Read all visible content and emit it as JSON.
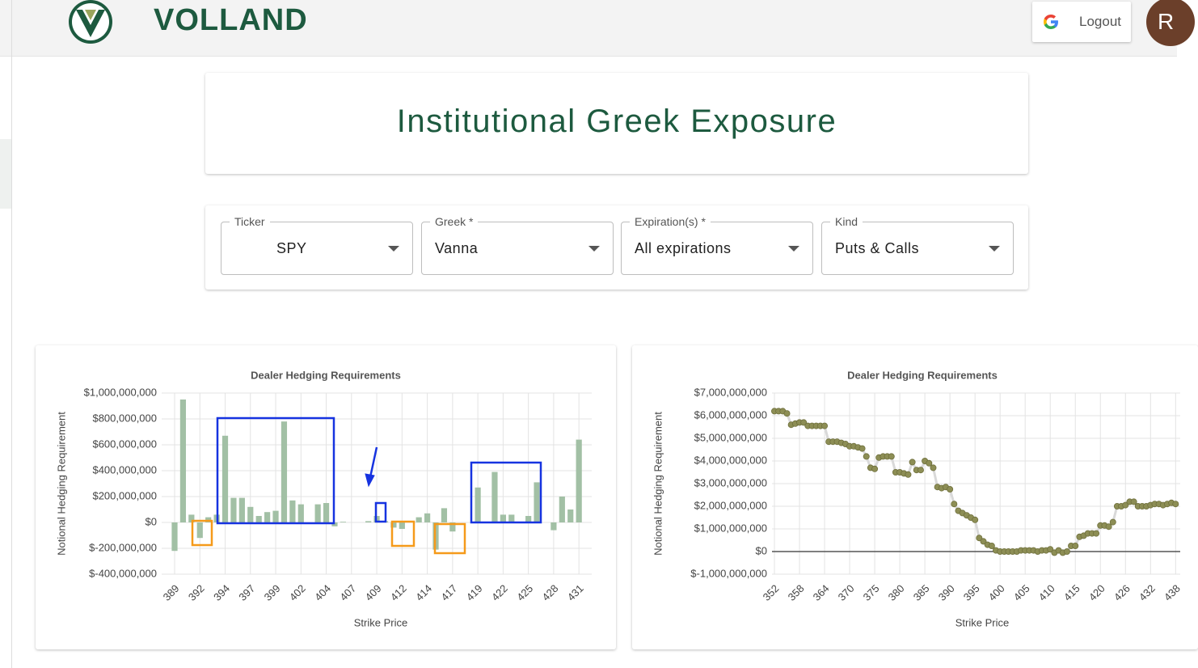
{
  "header": {
    "brand": "VOLLAND",
    "logout": "Logout",
    "avatar": "R"
  },
  "page_title": "Institutional Greek Exposure",
  "filters": [
    {
      "label": "Ticker",
      "value": "SPY"
    },
    {
      "label": "Greek *",
      "value": "Vanna"
    },
    {
      "label": "Expiration(s) *",
      "value": "All expirations"
    },
    {
      "label": "Kind",
      "value": "Puts & Calls"
    }
  ],
  "chart_data": [
    {
      "type": "bar",
      "title": "Dealer Hedging Requirements",
      "x_label": "Strike Price",
      "y_label": "Notional Hedging Requirement",
      "color": "#a2c0a5",
      "grid": true,
      "categories": [
        "389",
        null,
        null,
        "392",
        null,
        null,
        "394",
        null,
        null,
        "397",
        null,
        null,
        "399",
        null,
        null,
        "402",
        null,
        null,
        "404",
        null,
        null,
        "407",
        null,
        null,
        "409",
        null,
        null,
        "412",
        null,
        null,
        "414",
        null,
        null,
        "417",
        null,
        null,
        "419",
        null,
        null,
        "422",
        null,
        null,
        "425",
        null,
        null,
        "428",
        null,
        null,
        "431"
      ],
      "values": [
        -220000000,
        950000000,
        60000000,
        -120000000,
        40000000,
        60000000,
        670000000,
        190000000,
        190000000,
        120000000,
        50000000,
        80000000,
        90000000,
        780000000,
        170000000,
        140000000,
        0,
        140000000,
        150000000,
        -30000000,
        5000000,
        0,
        0,
        10000000,
        50000000,
        10000000,
        -40000000,
        -50000000,
        0,
        40000000,
        70000000,
        -210000000,
        110000000,
        -70000000,
        0,
        0,
        270000000,
        0,
        390000000,
        60000000,
        60000000,
        0,
        50000000,
        310000000,
        0,
        -60000000,
        200000000,
        100000000,
        640000000
      ],
      "ylim": [
        -400000000,
        1000000000
      ],
      "yticks": [
        {
          "value": -400000000,
          "label": "$-400,000,000"
        },
        {
          "value": -200000000,
          "label": "$-200,000,000"
        },
        {
          "value": 0,
          "label": "$0"
        },
        {
          "value": 200000000,
          "label": "$200,000,000"
        },
        {
          "value": 400000000,
          "label": "$400,000,000"
        },
        {
          "value": 600000000,
          "label": "$600,000,000"
        },
        {
          "value": 800000000,
          "label": "$800,000,000"
        },
        {
          "value": 1000000000,
          "label": "$1,000,000,000"
        }
      ]
    },
    {
      "type": "line",
      "title": "Dealer Hedging Requirements",
      "x_label": "Strike Price",
      "y_label": "Notional Hedging Requirement",
      "color": "#8d8e55",
      "line_color": "#d9d9d9",
      "grid": true,
      "categories": [
        "352",
        null,
        null,
        null,
        null,
        null,
        "358",
        null,
        null,
        null,
        null,
        null,
        "364",
        null,
        null,
        null,
        null,
        null,
        "370",
        null,
        null,
        null,
        null,
        null,
        "375",
        null,
        null,
        null,
        null,
        null,
        "380",
        null,
        null,
        null,
        null,
        null,
        "385",
        null,
        null,
        null,
        null,
        null,
        "390",
        null,
        null,
        null,
        null,
        null,
        "395",
        null,
        null,
        null,
        null,
        null,
        "400",
        null,
        null,
        null,
        null,
        null,
        "405",
        null,
        null,
        null,
        null,
        null,
        "410",
        null,
        null,
        null,
        null,
        null,
        "415",
        null,
        null,
        null,
        null,
        null,
        "420",
        null,
        null,
        null,
        null,
        null,
        "426",
        null,
        null,
        null,
        null,
        null,
        "432",
        null,
        null,
        null,
        null,
        null,
        "438"
      ],
      "values": [
        6200000000,
        6200000000,
        6200000000,
        6100000000,
        5600000000,
        5650000000,
        5700000000,
        5700000000,
        5550000000,
        5550000000,
        5550000000,
        5550000000,
        5550000000,
        4850000000,
        4850000000,
        4850000000,
        4800000000,
        4750000000,
        4650000000,
        4650000000,
        4600000000,
        4550000000,
        4200000000,
        3700000000,
        3650000000,
        4150000000,
        4200000000,
        4200000000,
        4200000000,
        3500000000,
        3500000000,
        3450000000,
        3400000000,
        3950000000,
        3600000000,
        3600000000,
        4000000000,
        3900000000,
        3700000000,
        2850000000,
        2800000000,
        2850000000,
        2750000000,
        2100000000,
        1800000000,
        1700000000,
        1600000000,
        1500000000,
        1400000000,
        600000000,
        450000000,
        300000000,
        250000000,
        50000000,
        0,
        0,
        0,
        0,
        0,
        50000000,
        50000000,
        50000000,
        50000000,
        0,
        50000000,
        50000000,
        100000000,
        -50000000,
        50000000,
        -50000000,
        0,
        250000000,
        250000000,
        650000000,
        700000000,
        800000000,
        800000000,
        800000000,
        1150000000,
        1150000000,
        1100000000,
        1300000000,
        2000000000,
        2000000000,
        2050000000,
        2200000000,
        2200000000,
        2000000000,
        2000000000,
        2000000000,
        2050000000,
        2100000000,
        2100000000,
        2050000000,
        2100000000,
        2150000000,
        2100000000
      ],
      "ylim": [
        -1000000000,
        7000000000
      ],
      "yticks": [
        {
          "value": -1000000000,
          "label": "$-1,000,000,000"
        },
        {
          "value": 0,
          "label": "$0"
        },
        {
          "value": 1000000000,
          "label": "$1,000,000,000"
        },
        {
          "value": 2000000000,
          "label": "$2,000,000,000"
        },
        {
          "value": 3000000000,
          "label": "$3,000,000,000"
        },
        {
          "value": 4000000000,
          "label": "$4,000,000,000"
        },
        {
          "value": 5000000000,
          "label": "$5,000,000,000"
        },
        {
          "value": 6000000000,
          "label": "$6,000,000,000"
        },
        {
          "value": 7000000000,
          "label": "$7,000,000,000"
        }
      ]
    }
  ]
}
